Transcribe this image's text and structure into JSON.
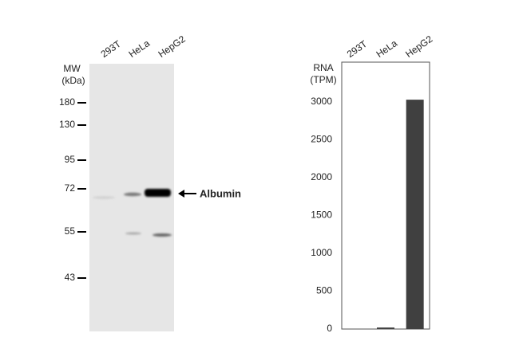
{
  "blot": {
    "lane_labels": [
      "293T",
      "HeLa",
      "HepG2"
    ],
    "mw_label": "MW",
    "mw_unit": "(kDa)",
    "markers": [
      "180",
      "130",
      "95",
      "72",
      "55",
      "43"
    ],
    "band_label": "Albumin"
  },
  "chart_data": {
    "type": "bar",
    "y_label": [
      "RNA",
      "(TPM)"
    ],
    "categories": [
      "293T",
      "HeLa",
      "HepG2"
    ],
    "values": [
      0,
      20,
      3030
    ],
    "color": "#404040",
    "ylim": [
      0,
      3526
    ],
    "yticks": [
      0,
      500,
      1000,
      1500,
      2000,
      2500,
      3000
    ]
  }
}
